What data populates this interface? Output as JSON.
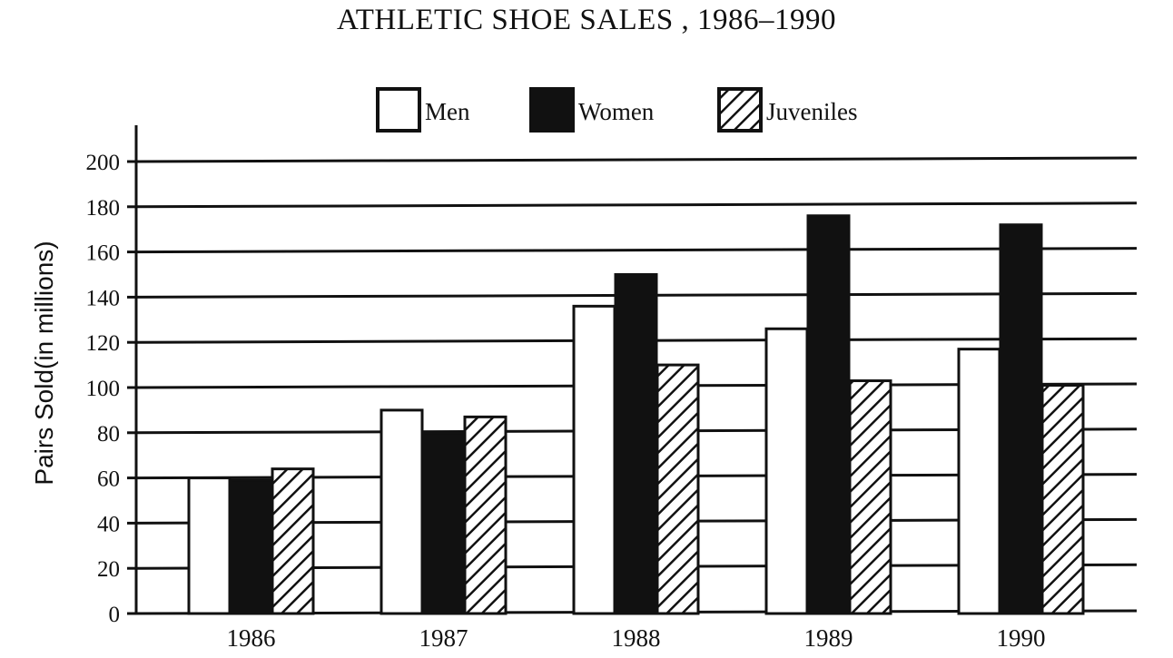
{
  "chart_data": {
    "type": "bar",
    "title": "ATHLETIC SHOE SALES , 1986–1990",
    "xlabel": "",
    "ylabel": "Pairs Sold(in millions)",
    "ylim": [
      0,
      200
    ],
    "yticks": [
      "0",
      "20",
      "40",
      "60",
      "80",
      "100",
      "120",
      "140",
      "160",
      "180",
      "200"
    ],
    "categories": [
      "1986",
      "1987",
      "1988",
      "1989",
      "1990"
    ],
    "series": [
      {
        "name": "Men",
        "values": [
          60,
          90,
          136,
          126,
          117
        ],
        "fill": "solid-white"
      },
      {
        "name": "Women",
        "values": [
          59,
          80,
          150,
          176,
          172
        ],
        "fill": "solid-black"
      },
      {
        "name": "Juveniles",
        "values": [
          64,
          87,
          110,
          103,
          101
        ],
        "fill": "diagonal-hatch"
      }
    ],
    "legend_position": "top-center",
    "grid": true
  },
  "colors": {
    "ink": "#111111",
    "background": "#ffffff"
  }
}
